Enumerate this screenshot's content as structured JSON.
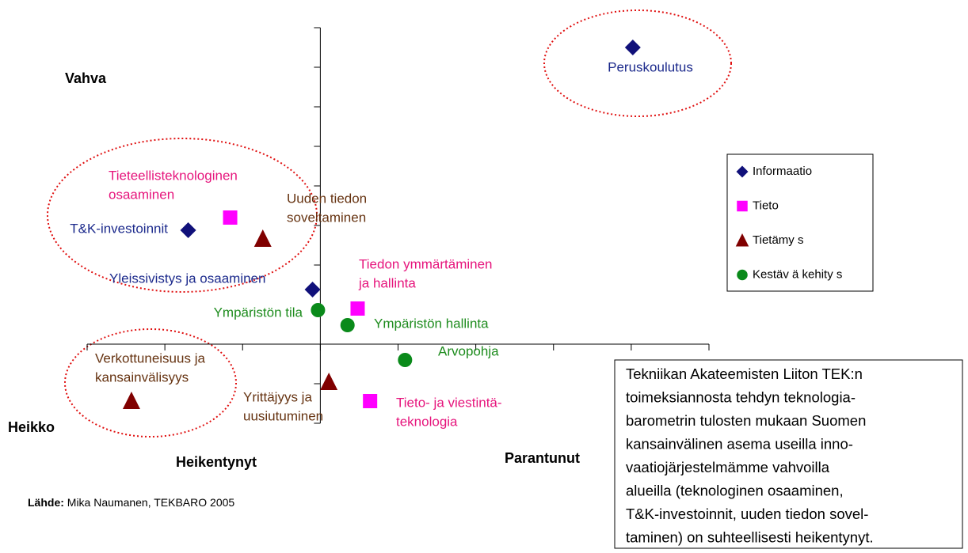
{
  "chart_data": {
    "type": "scatter",
    "xlim": [
      -3,
      5
    ],
    "ylim": [
      -2,
      8
    ],
    "xticks": [
      -3,
      -2,
      -1,
      0,
      1,
      2,
      3,
      4,
      5
    ],
    "yticks": [
      -2,
      -1,
      0,
      1,
      2,
      3,
      4,
      5,
      6,
      7,
      8
    ],
    "axis_labels": {
      "top": "Vahva",
      "bottom": "Heikko",
      "left": "Heikentynyt",
      "right": "Parantunut"
    },
    "source": {
      "label": "Lähde:",
      "text": "Mika Naumanen, TEKBARO 2005"
    },
    "annotation": [
      "Tekniikan Akateemisten Liiton TEK:n",
      "toimeksiannosta tehdyn teknologia-",
      "barometrin tulosten mukaan Suomen",
      "kansainvälinen asema useilla inno-",
      "vaatiojärjestelmämme vahvoilla",
      "alueilla (teknologinen osaaminen,",
      "T&K-investoinnit, uuden tiedon sovel-",
      "taminen) on suhteellisesti heikentynyt."
    ],
    "legend": "right",
    "series": [
      {
        "name": "Informaatio",
        "marker": "diamond",
        "color": "#10107a",
        "label_color": "#1c2a8c",
        "x": [
          4.02,
          -1.7,
          -0.1
        ],
        "values": [
          7.5,
          2.88,
          1.38
        ],
        "labels": [
          [
            "Peruskoulutus"
          ],
          [
            "T&K-investoinnit"
          ],
          [
            "Yleissivistys ja osaaminen"
          ]
        ]
      },
      {
        "name": "Tieto",
        "marker": "square",
        "color": "#ff00ff",
        "label_color": "#e6147c",
        "x": [
          -1.16,
          0.48,
          0.64
        ],
        "values": [
          3.2,
          0.9,
          -1.44
        ],
        "labels": [
          [
            "Tieteellisteknologinen",
            "osaaminen"
          ],
          [
            "Tiedon ymmärtäminen",
            "ja hallinta"
          ],
          [
            "Tieto- ja viestintä-",
            "teknologia"
          ]
        ]
      },
      {
        "name": "Tietämy s",
        "marker": "triangle",
        "color": "#800000",
        "label_color": "#663311",
        "x": [
          -0.74,
          -2.43,
          0.11
        ],
        "values": [
          2.66,
          -1.44,
          -0.96
        ],
        "labels": [
          [
            "Uuden tiedon",
            "soveltaminen"
          ],
          [
            "Verkottuneisuus ja",
            "kansainvälisyys"
          ],
          [
            "Yrittäjyys ja",
            "uusiutuminen"
          ]
        ]
      },
      {
        "name": "Kestäv ä kehity s",
        "marker": "circle",
        "color": "#0a8a1a",
        "label_color": "#1e8c1e",
        "x": [
          -0.03,
          0.35,
          1.09
        ],
        "values": [
          0.86,
          0.48,
          -0.4
        ],
        "labels": [
          [
            "Ympäristön tila"
          ],
          [
            "Ympäristön hallinta"
          ],
          [
            "Arvopohja"
          ]
        ]
      }
    ]
  }
}
